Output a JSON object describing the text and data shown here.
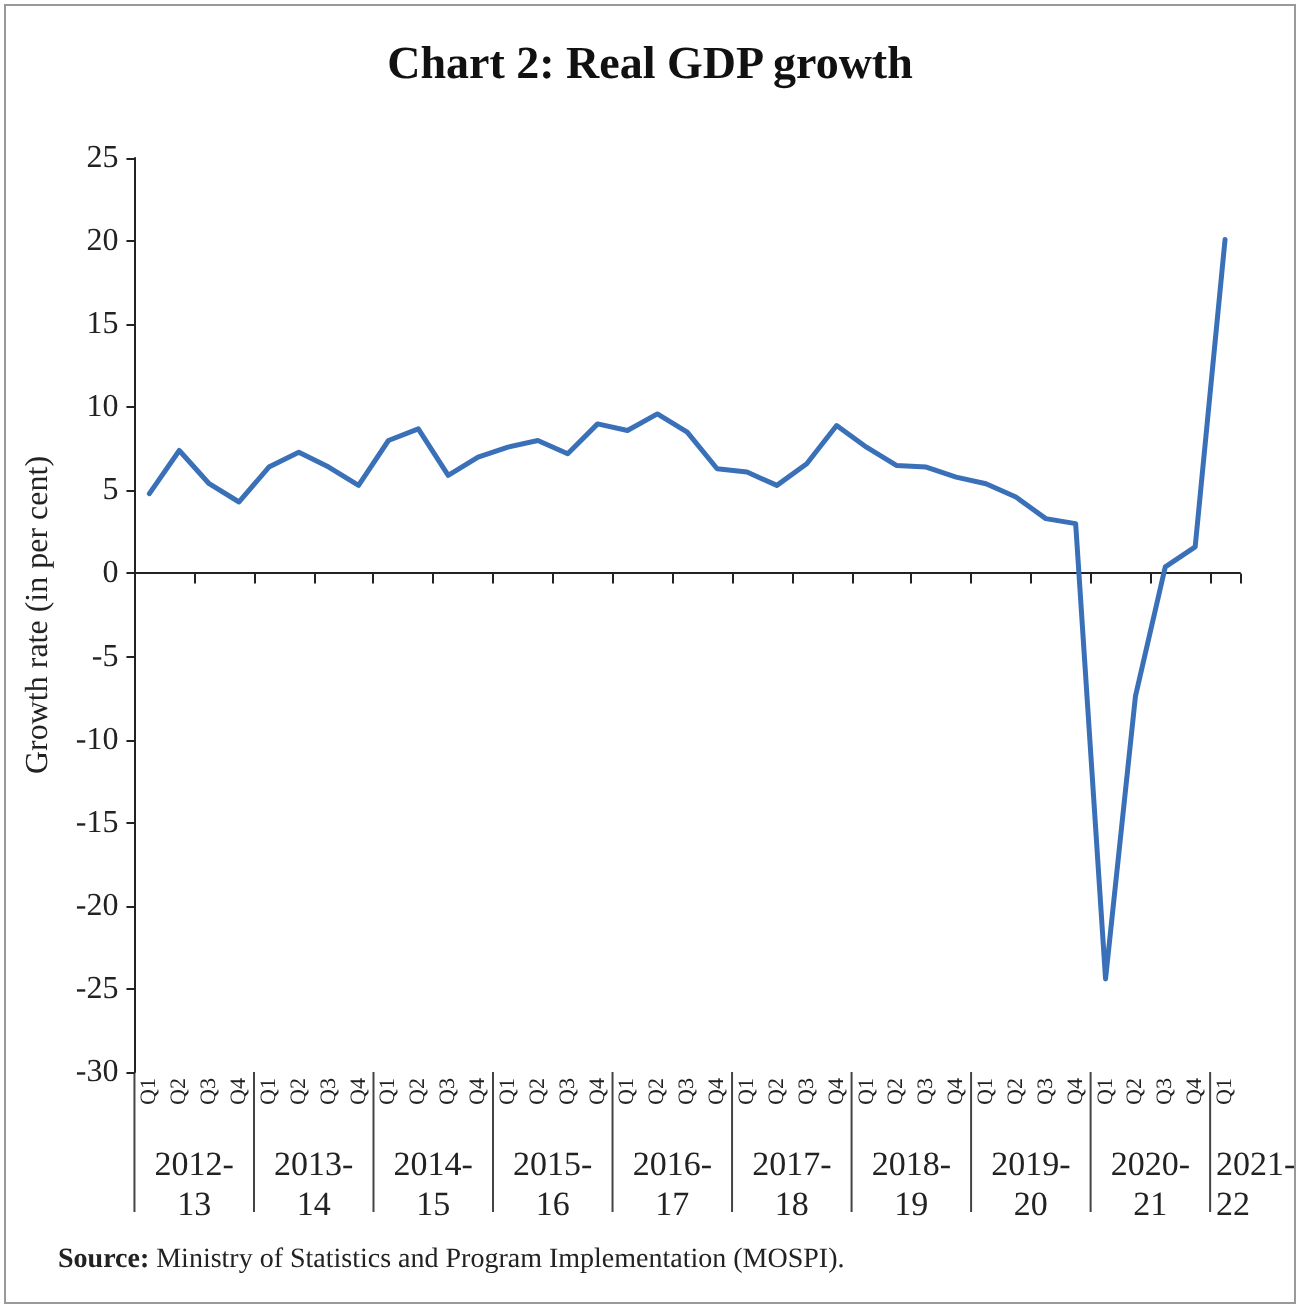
{
  "chart_data": {
    "type": "line",
    "title": "Chart 2: Real GDP growth",
    "ylabel": "Growth rate (in per cent)",
    "categories": [
      "Q1",
      "Q2",
      "Q3",
      "Q4",
      "Q1",
      "Q2",
      "Q3",
      "Q4",
      "Q1",
      "Q2",
      "Q3",
      "Q4",
      "Q1",
      "Q2",
      "Q3",
      "Q4",
      "Q1",
      "Q2",
      "Q3",
      "Q4",
      "Q1",
      "Q2",
      "Q3",
      "Q4",
      "Q1",
      "Q2",
      "Q3",
      "Q4",
      "Q1",
      "Q2",
      "Q3",
      "Q4",
      "Q1",
      "Q2",
      "Q3",
      "Q4",
      "Q1"
    ],
    "series": [
      {
        "color": "#3a70b8",
        "values": [
          4.8,
          7.4,
          5.4,
          4.3,
          6.4,
          7.3,
          6.4,
          5.3,
          8.0,
          8.7,
          5.9,
          7.0,
          7.6,
          8.0,
          7.2,
          9.0,
          8.6,
          9.6,
          8.5,
          6.3,
          6.1,
          5.3,
          6.6,
          8.9,
          7.6,
          6.5,
          6.4,
          5.8,
          5.4,
          4.6,
          3.3,
          3.0,
          -24.4,
          -7.4,
          0.4,
          1.6,
          20.1
        ]
      }
    ],
    "ylim": [
      -30,
      25
    ],
    "yticks": [
      -30,
      -25,
      -20,
      -15,
      -10,
      -5,
      0,
      5,
      10,
      15,
      20,
      25
    ],
    "legend": false,
    "marker": "none",
    "line_style": "solid",
    "annotations": [
      "2012-13",
      "2013-14",
      "2014-15",
      "2015-16",
      "2016-17",
      "2017-18",
      "2018-19",
      "2019-20",
      "2020-21",
      "2021-22",
      "Source: Ministry of Statistics and Program Implementation (MOSPI)."
    ]
  }
}
